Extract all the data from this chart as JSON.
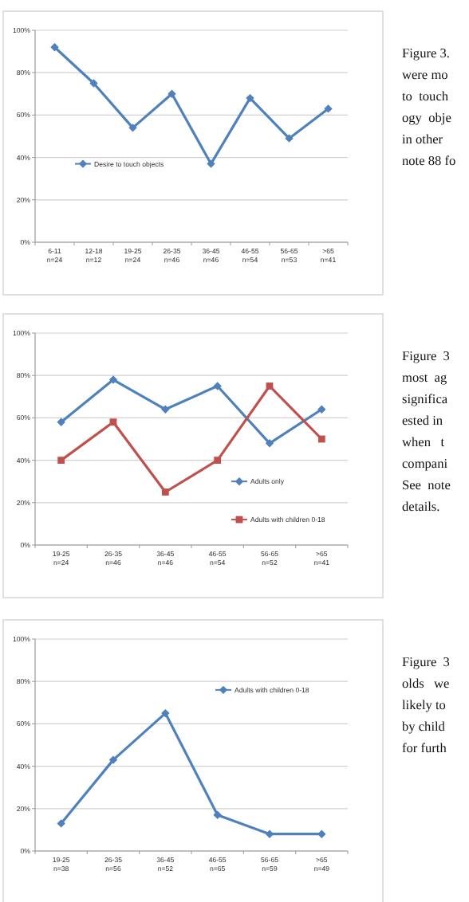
{
  "chart_data": [
    {
      "type": "line",
      "categories": [
        "6-11\nn=24",
        "12-18\nn=12",
        "19-25\nn=24",
        "26-35\nn=46",
        "36-45\nn=46",
        "46-55\nn=54",
        "56-65\nn=53",
        ">65\nn=41"
      ],
      "series": [
        {
          "name": "Desire to touch objects",
          "color": "#4f81bd",
          "marker": "diamond",
          "values": [
            92,
            75,
            54,
            70,
            37,
            68,
            49,
            63
          ]
        }
      ],
      "ylim": [
        0,
        100
      ],
      "yticks": [
        {
          "value": 0,
          "label": "0%"
        },
        {
          "value": 20,
          "label": "20%"
        },
        {
          "value": 40,
          "label": "40%"
        },
        {
          "value": 60,
          "label": "60%"
        },
        {
          "value": 80,
          "label": "80%"
        },
        {
          "value": 100,
          "label": "100%"
        }
      ],
      "grid": "y",
      "legend": "left",
      "annotations": [
        "Figure 3.\nwere mo\nto  touch\nogy  obje\nin other\nnote 88 fo"
      ]
    },
    {
      "type": "line",
      "categories": [
        "19-25\nn=24",
        "26-35\nn=46",
        "36-45\nn=46",
        "46-55\nn=54",
        "56-65\nn=52",
        ">65\nn=41"
      ],
      "series": [
        {
          "name": "Adults only",
          "color": "#4f81bd",
          "marker": "diamond",
          "values": [
            58,
            78,
            64,
            75,
            48,
            64
          ]
        },
        {
          "name": "Adults with children 0-18",
          "color": "#c0504d",
          "marker": "square",
          "values": [
            40,
            58,
            25,
            40,
            75,
            50
          ]
        }
      ],
      "ylim": [
        0,
        100
      ],
      "yticks": [
        {
          "value": 0,
          "label": "0%"
        },
        {
          "value": 20,
          "label": "20%"
        },
        {
          "value": 40,
          "label": "40%"
        },
        {
          "value": 60,
          "label": "60%"
        },
        {
          "value": 80,
          "label": "80%"
        },
        {
          "value": 100,
          "label": "100%"
        }
      ],
      "grid": "y",
      "legend": "bottom right",
      "annotations": [
        "Figure  3\nmost  ag\nsignifica\nested in\nwhen   t\ncompani\nSee  note\ndetails."
      ]
    },
    {
      "type": "line",
      "categories": [
        "19-25\nn=38",
        "26-35\nn=56",
        "36-45\nn=52",
        "46-55\nn=65",
        "56-65\nn=59",
        ">65\nn=49"
      ],
      "series": [
        {
          "name": "Adults with children 0-18",
          "color": "#4f81bd",
          "marker": "diamond",
          "values": [
            13,
            43,
            65,
            17,
            8,
            8
          ]
        }
      ],
      "ylim": [
        0,
        100
      ],
      "yticks": [
        {
          "value": 0,
          "label": "0%"
        },
        {
          "value": 20,
          "label": "20%"
        },
        {
          "value": 40,
          "label": "40%"
        },
        {
          "value": 60,
          "label": "60%"
        },
        {
          "value": 80,
          "label": "80%"
        },
        {
          "value": 100,
          "label": "100%"
        }
      ],
      "grid": "y",
      "legend": "top right",
      "annotations": [
        "Figure  3\nolds   we\nlikely to\nby child\nfor furth"
      ]
    }
  ]
}
